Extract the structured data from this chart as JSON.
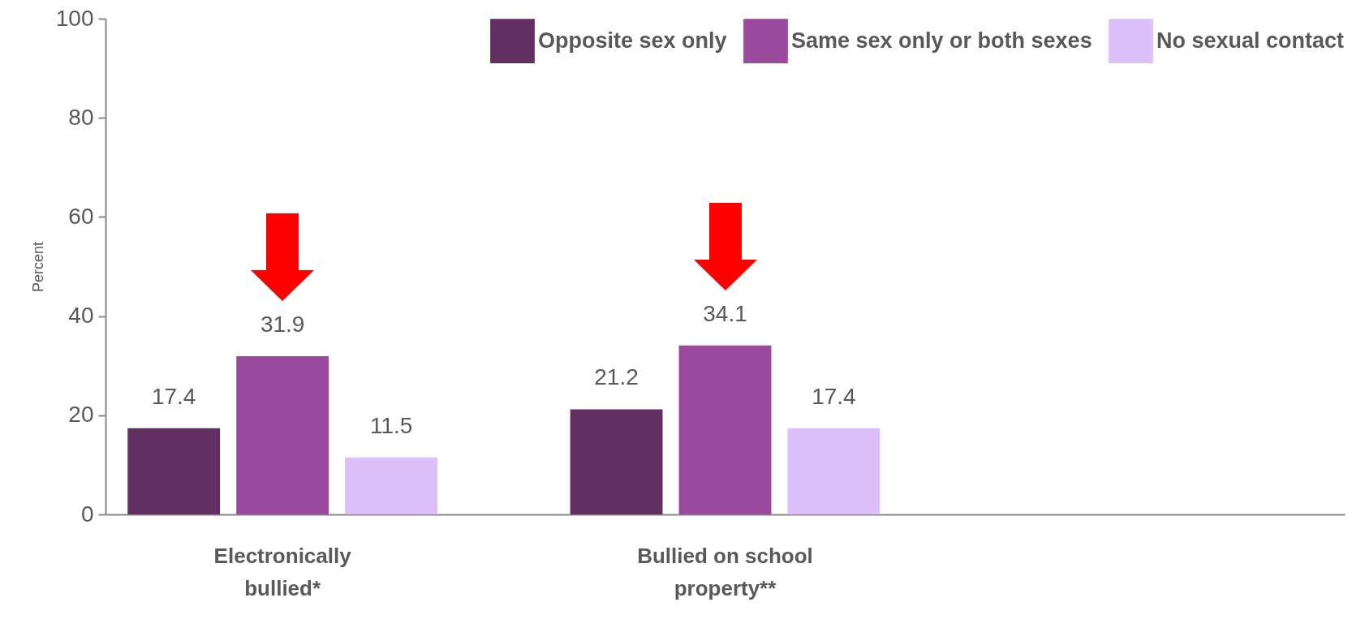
{
  "chart_data": {
    "type": "bar",
    "ylabel": "Percent",
    "categories": [
      "Electronically bullied*",
      "Bullied on school property**",
      null
    ],
    "series": [
      {
        "name": "Opposite sex only",
        "color": "#622f63",
        "values": [
          17.4,
          21.2,
          null
        ]
      },
      {
        "name": "Same sex only or both sexes",
        "color": "#9a4a9d",
        "values": [
          31.9,
          34.1,
          null
        ]
      },
      {
        "name": "No sexual contact",
        "color": "#dcc0fa",
        "values": [
          11.5,
          17.4,
          null
        ]
      }
    ],
    "ylim": [
      0,
      100
    ],
    "yticks": [
      0,
      20,
      40,
      60,
      80,
      100
    ],
    "data_labels": true,
    "legend": "top right",
    "grid": false
  }
}
